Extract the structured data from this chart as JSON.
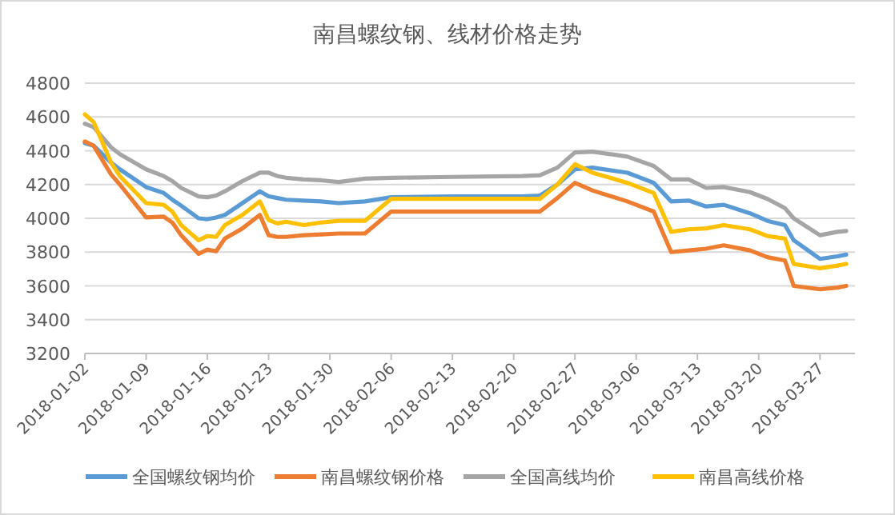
{
  "chart_data": {
    "type": "line",
    "title": "南昌螺纹钢、线材价格走势",
    "x": [
      "2018-01-02",
      "2018-01-03",
      "2018-01-05",
      "2018-01-06",
      "2018-01-09",
      "2018-01-11",
      "2018-01-12",
      "2018-01-13",
      "2018-01-15",
      "2018-01-16",
      "2018-01-17",
      "2018-01-18",
      "2018-01-20",
      "2018-01-22",
      "2018-01-23",
      "2018-01-24",
      "2018-01-25",
      "2018-01-27",
      "2018-01-29",
      "2018-01-31",
      "2018-02-03",
      "2018-02-06",
      "2018-02-13",
      "2018-02-21",
      "2018-02-23",
      "2018-02-25",
      "2018-02-27",
      "2018-03-01",
      "2018-03-05",
      "2018-03-08",
      "2018-03-10",
      "2018-03-12",
      "2018-03-14",
      "2018-03-16",
      "2018-03-19",
      "2018-03-21",
      "2018-03-23",
      "2018-03-24",
      "2018-03-27",
      "2018-03-29",
      "2018-03-30"
    ],
    "series": [
      {
        "name": "全国螺纹钢均价",
        "color": "#5b9bd5",
        "values": [
          4445,
          4430,
          4330,
          4290,
          4185,
          4150,
          4110,
          4075,
          4000,
          3995,
          4005,
          4020,
          4090,
          4160,
          4130,
          4120,
          4110,
          4105,
          4100,
          4090,
          4100,
          4125,
          4130,
          4130,
          4135,
          4200,
          4290,
          4300,
          4270,
          4210,
          4100,
          4105,
          4070,
          4080,
          4030,
          3985,
          3960,
          3870,
          3760,
          3775,
          3785
        ]
      },
      {
        "name": "南昌螺纹钢价格",
        "color": "#ed7d31",
        "values": [
          4455,
          4430,
          4260,
          4200,
          4005,
          4010,
          3975,
          3900,
          3790,
          3815,
          3805,
          3880,
          3940,
          4020,
          3900,
          3890,
          3890,
          3900,
          3905,
          3910,
          3910,
          4040,
          4040,
          4040,
          4040,
          4120,
          4210,
          4165,
          4100,
          4040,
          3800,
          3810,
          3820,
          3840,
          3810,
          3770,
          3750,
          3600,
          3580,
          3590,
          3600
        ]
      },
      {
        "name": "全国高线均价",
        "color": "#a5a5a5",
        "values": [
          4560,
          4540,
          4420,
          4380,
          4290,
          4250,
          4220,
          4180,
          4130,
          4125,
          4135,
          4160,
          4220,
          4270,
          4270,
          4250,
          4240,
          4230,
          4225,
          4215,
          4235,
          4240,
          4245,
          4250,
          4255,
          4300,
          4390,
          4395,
          4365,
          4310,
          4230,
          4230,
          4180,
          4185,
          4155,
          4115,
          4060,
          4000,
          3900,
          3920,
          3925
        ]
      },
      {
        "name": "南昌高线价格",
        "color": "#ffc000",
        "values": [
          4615,
          4570,
          4330,
          4250,
          4090,
          4080,
          4040,
          3960,
          3870,
          3895,
          3890,
          3960,
          4020,
          4100,
          3990,
          3970,
          3980,
          3960,
          3975,
          3985,
          3985,
          4115,
          4115,
          4115,
          4115,
          4200,
          4320,
          4270,
          4210,
          4150,
          3920,
          3935,
          3940,
          3960,
          3935,
          3895,
          3880,
          3730,
          3705,
          3720,
          3730
        ]
      }
    ],
    "xlim": [
      "2018-01-02",
      "2018-03-31"
    ],
    "xticks": [
      "2018-01-02",
      "2018-01-09",
      "2018-01-16",
      "2018-01-23",
      "2018-01-30",
      "2018-02-06",
      "2018-02-13",
      "2018-02-20",
      "2018-02-27",
      "2018-03-06",
      "2018-03-13",
      "2018-03-20",
      "2018-03-27"
    ],
    "ylim": [
      3200,
      4800
    ],
    "yticks": [
      3200,
      3400,
      3600,
      3800,
      4000,
      4200,
      4400,
      4600,
      4800
    ],
    "grid": "y",
    "legend": "bottom",
    "marker": "none",
    "line_style": "solid"
  }
}
